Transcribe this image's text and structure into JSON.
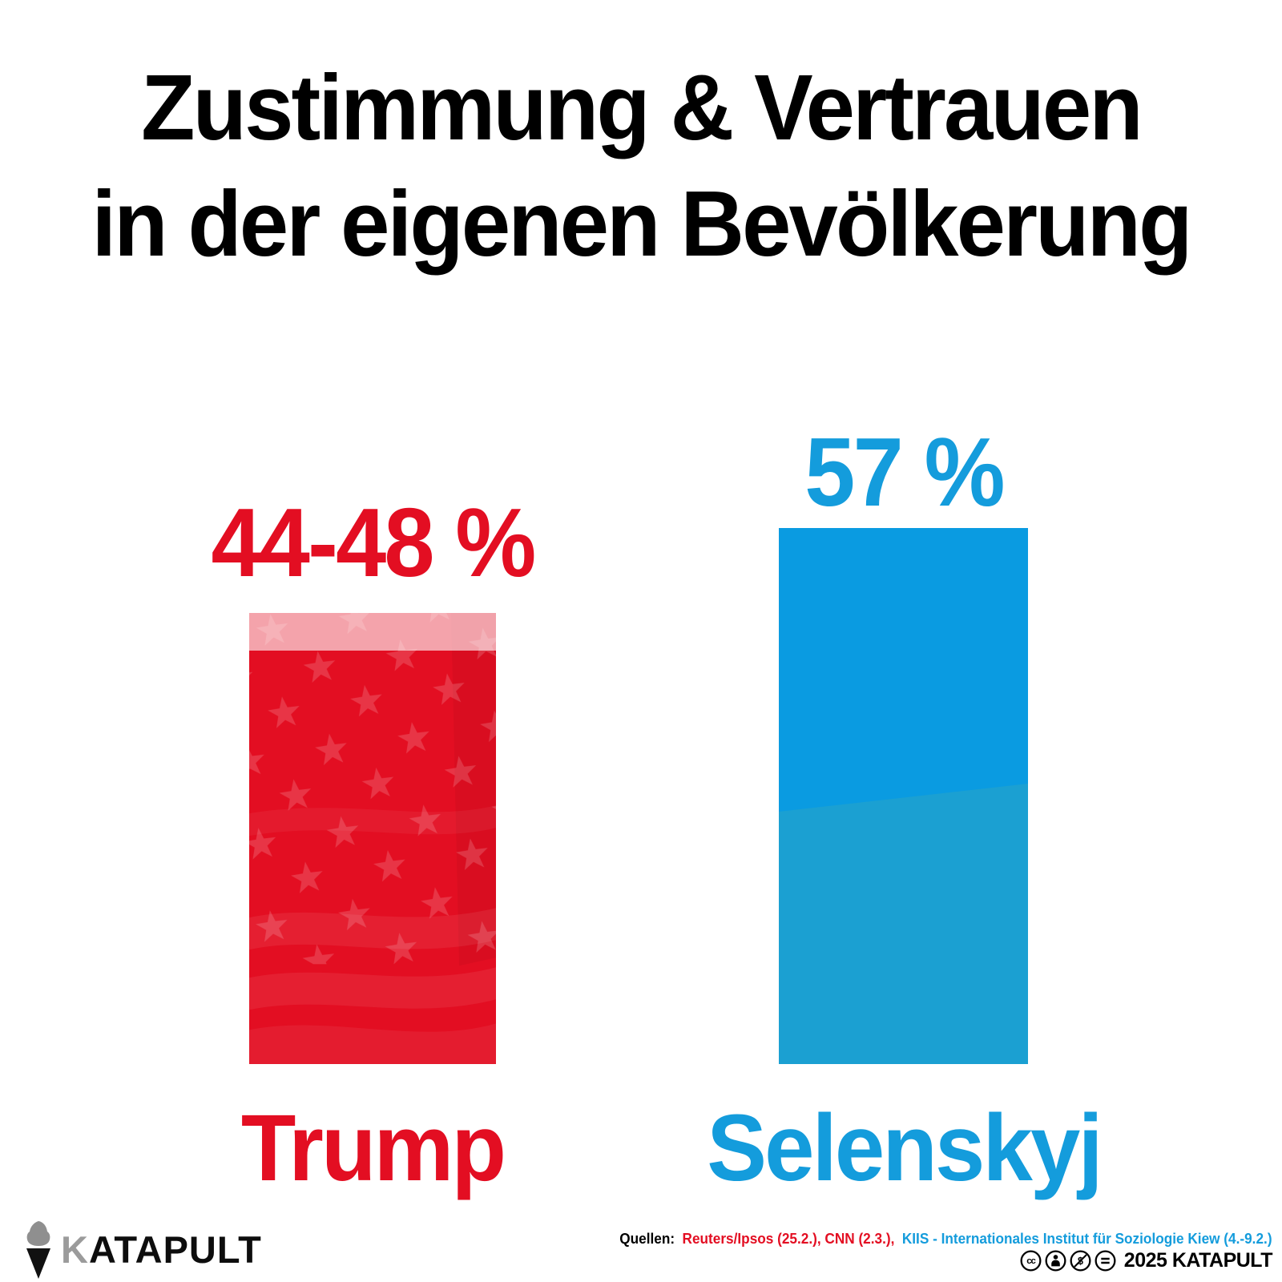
{
  "title": {
    "line1": "Zustimmung & Vertrauen",
    "line2": "in der eigenen Bevölkerung"
  },
  "chart_data": {
    "type": "bar",
    "title": "Zustimmung & Vertrauen in der eigenen Bevölkerung",
    "unit": "%",
    "ylim": [
      0,
      60
    ],
    "grid": false,
    "value_axis_visible": false,
    "categories": [
      "Trump",
      "Selenskyj"
    ],
    "series": [
      {
        "name": "Trump",
        "value_min": 44,
        "value_max": 48,
        "label": "44-48 %",
        "color": "#e30e22",
        "range_band_color": "#f5a9b1",
        "texture": "us-flag-stars-and-stripes"
      },
      {
        "name": "Selenskyj",
        "value": 57,
        "label": "57 %",
        "color": "#0a9be1",
        "secondary_color": "#1ba0d2",
        "texture": "diagonal-tone-break"
      }
    ]
  },
  "footer": {
    "logo_text_k": "K",
    "logo_text_rest": "ATAPULT",
    "sources_label": "Quellen:",
    "source_red": "Reuters/Ipsos (25.2.), CNN (2.3.),",
    "source_blue": "KIIS - Internationales Institut für Soziologie Kiew (4.-9.2.)",
    "license_icons": [
      "cc",
      "by",
      "nc",
      "nd"
    ],
    "copyright": "2025 KATAPULT"
  },
  "colors": {
    "accent_red": "#e30e22",
    "accent_blue": "#149cdc",
    "bar_blue_top": "#0a9be1",
    "bar_blue_bottom": "#1ba0d2",
    "range_band_pink": "#f5a9b1",
    "text_black": "#000000",
    "logo_gray": "#9b9b9b"
  }
}
